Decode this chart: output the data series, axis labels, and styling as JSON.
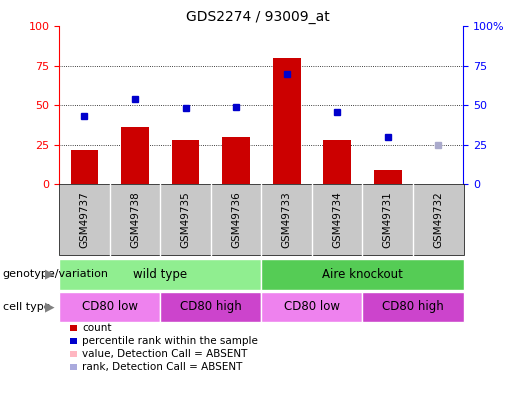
{
  "title": "GDS2274 / 93009_at",
  "samples": [
    "GSM49737",
    "GSM49738",
    "GSM49735",
    "GSM49736",
    "GSM49733",
    "GSM49734",
    "GSM49731",
    "GSM49732"
  ],
  "bar_heights": [
    22,
    36,
    28,
    30,
    80,
    28,
    9,
    0
  ],
  "bar_colors": [
    "#cc0000",
    "#cc0000",
    "#cc0000",
    "#cc0000",
    "#cc0000",
    "#cc0000",
    "#cc0000",
    "#ffb6c1"
  ],
  "dot_values": [
    43,
    54,
    48,
    49,
    70,
    46,
    30,
    25
  ],
  "dot_colors": [
    "#0000cc",
    "#0000cc",
    "#0000cc",
    "#0000cc",
    "#0000cc",
    "#0000cc",
    "#0000cc",
    "#aaaacc"
  ],
  "ylim_left": [
    0,
    100
  ],
  "ylim_right": [
    0,
    100
  ],
  "grid_lines": [
    25,
    50,
    75
  ],
  "genotype_groups": [
    {
      "label": "wild type",
      "start": 0,
      "end": 4,
      "color": "#90ee90"
    },
    {
      "label": "Aire knockout",
      "start": 4,
      "end": 8,
      "color": "#55cc55"
    }
  ],
  "cell_type_groups": [
    {
      "label": "CD80 low",
      "start": 0,
      "end": 2,
      "color": "#ee82ee"
    },
    {
      "label": "CD80 high",
      "start": 2,
      "end": 4,
      "color": "#cc44cc"
    },
    {
      "label": "CD80 low",
      "start": 4,
      "end": 6,
      "color": "#ee82ee"
    },
    {
      "label": "CD80 high",
      "start": 6,
      "end": 8,
      "color": "#cc44cc"
    }
  ],
  "legend_items": [
    {
      "label": "count",
      "color": "#cc0000"
    },
    {
      "label": "percentile rank within the sample",
      "color": "#0000cc"
    },
    {
      "label": "value, Detection Call = ABSENT",
      "color": "#ffb6c1"
    },
    {
      "label": "rank, Detection Call = ABSENT",
      "color": "#aaaadd"
    }
  ],
  "left_row_labels": [
    "genotype/variation",
    "cell type"
  ],
  "background_color": "#ffffff",
  "plot_bg": "#ffffff",
  "gray_label_bg": "#c8c8c8"
}
